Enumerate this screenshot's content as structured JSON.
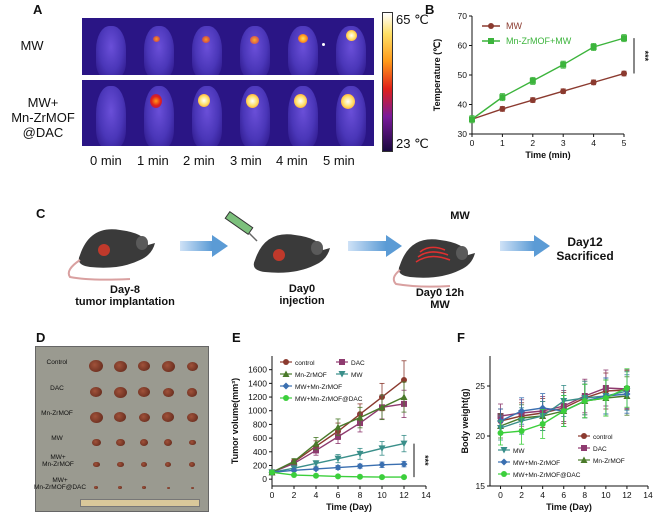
{
  "panels": {
    "A": "A",
    "B": "B",
    "C": "C",
    "D": "D",
    "E": "E",
    "F": "F"
  },
  "panelA": {
    "rows": [
      "MW",
      "MW+\nMn-ZrMOF\n@DAC"
    ],
    "row1": "MW",
    "row2a": "MW+",
    "row2b": "Mn-ZrMOF",
    "row2c": "@DAC",
    "times": [
      "0 min",
      "1 min",
      "2 min",
      "3 min",
      "4 min",
      "5 min"
    ],
    "scale_max": "65 ℃",
    "scale_min": "23 ℃"
  },
  "panelC": {
    "step1a": "Day-8",
    "step1b": "tumor implantation",
    "step2a": "Day0",
    "step2b": "injection",
    "step3_top": "MW",
    "step3a": "Day0 12h",
    "step3b": "MW",
    "step4a": "Day12",
    "step4b": "Sacrificed"
  },
  "panelD": {
    "labels": [
      "Control",
      "DAC",
      "Mn-ZrMOF",
      "MW",
      "MW+\nMn-ZrMOF",
      "MW+\nMn-ZrMOF@DAC"
    ]
  },
  "colors": {
    "mw": "#8b3a2f",
    "mof": "#3cb43c",
    "control": "#8b3a2f",
    "dac": "#8e3a6f",
    "mnzrmof": "#4a7a2a",
    "mwE": "#3a8f8a",
    "mwmof": "#3a6fb0",
    "mwmofdac": "#3ccf3c"
  },
  "chart_data": [
    {
      "id": "B",
      "type": "line",
      "xlabel": "Time (min)",
      "ylabel": "Temperature (℃)",
      "xlim": [
        0,
        5
      ],
      "ylim": [
        30,
        70
      ],
      "xticks": [
        0,
        1,
        2,
        3,
        4,
        5
      ],
      "yticks": [
        30,
        40,
        50,
        60,
        70
      ],
      "significance": "***",
      "legend_position": "top-left",
      "series": [
        {
          "name": "MW",
          "x": [
            0,
            1,
            2,
            3,
            4,
            5
          ],
          "y": [
            35,
            38.5,
            41.5,
            44.5,
            47.5,
            50.5
          ]
        },
        {
          "name": "Mn-ZrMOF+MW",
          "x": [
            0,
            1,
            2,
            3,
            4,
            5
          ],
          "y": [
            35,
            42.5,
            48,
            53.5,
            59.5,
            62.5
          ]
        }
      ]
    },
    {
      "id": "E",
      "type": "line",
      "xlabel": "Time (Day)",
      "ylabel": "Tumor volume(mm³)",
      "xlim": [
        0,
        14
      ],
      "ylim": [
        -100,
        1800
      ],
      "xticks": [
        0,
        2,
        4,
        6,
        8,
        10,
        12,
        14
      ],
      "yticks": [
        0,
        200,
        400,
        600,
        800,
        1000,
        1200,
        1400,
        1600
      ],
      "significance": "***",
      "legend_position": "top-left",
      "series": [
        {
          "name": "control",
          "x": [
            0,
            2,
            4,
            6,
            8,
            10,
            12
          ],
          "y": [
            100,
            250,
            480,
            700,
            950,
            1200,
            1450
          ]
        },
        {
          "name": "DAC",
          "x": [
            0,
            2,
            4,
            6,
            8,
            10,
            12
          ],
          "y": [
            100,
            230,
            420,
            620,
            820,
            1050,
            1100
          ]
        },
        {
          "name": "Mn-ZrMOF",
          "x": [
            0,
            2,
            4,
            6,
            8,
            10,
            12
          ],
          "y": [
            100,
            260,
            520,
            760,
            900,
            1050,
            1200
          ]
        },
        {
          "name": "MW",
          "x": [
            0,
            2,
            4,
            6,
            8,
            10,
            12
          ],
          "y": [
            100,
            160,
            230,
            300,
            370,
            450,
            520
          ]
        },
        {
          "name": "MW+Mn-ZrMOF",
          "x": [
            0,
            2,
            4,
            6,
            8,
            10,
            12
          ],
          "y": [
            100,
            130,
            150,
            170,
            190,
            210,
            220
          ]
        },
        {
          "name": "MW+Mn-ZrMOF@DAC",
          "x": [
            0,
            2,
            4,
            6,
            8,
            10,
            12
          ],
          "y": [
            100,
            60,
            50,
            40,
            35,
            30,
            30
          ]
        }
      ]
    },
    {
      "id": "F",
      "type": "line",
      "xlabel": "Time (Day)",
      "ylabel": "Body weight(g)",
      "xlim": [
        -1,
        14
      ],
      "ylim": [
        15,
        28
      ],
      "xticks": [
        0,
        2,
        4,
        6,
        8,
        10,
        12,
        14
      ],
      "yticks": [
        15,
        20,
        25
      ],
      "legend_position": "bottom-left",
      "series": [
        {
          "name": "control",
          "x": [
            0,
            2,
            4,
            6,
            8,
            10,
            12
          ],
          "y": [
            21.5,
            22.0,
            22.3,
            22.8,
            23.8,
            24.5,
            24.6
          ]
        },
        {
          "name": "DAC",
          "x": [
            0,
            2,
            4,
            6,
            8,
            10,
            12
          ],
          "y": [
            22.0,
            22.3,
            22.5,
            23.0,
            24.0,
            24.8,
            24.7
          ]
        },
        {
          "name": "Mn-ZrMOF",
          "x": [
            0,
            2,
            4,
            6,
            8,
            10,
            12
          ],
          "y": [
            21.0,
            21.8,
            22.0,
            22.5,
            23.5,
            23.8,
            24.0
          ]
        },
        {
          "name": "MW",
          "x": [
            0,
            2,
            4,
            6,
            8,
            10,
            12
          ],
          "y": [
            20.8,
            21.5,
            22.0,
            23.5,
            23.8,
            24.0,
            24.5
          ]
        },
        {
          "name": "MW+Mn-ZrMOF",
          "x": [
            0,
            2,
            4,
            6,
            8,
            10,
            12
          ],
          "y": [
            21.5,
            22.5,
            22.8,
            22.5,
            23.5,
            24.0,
            24.2
          ]
        },
        {
          "name": "MW+Mn-ZrMOF@DAC",
          "x": [
            0,
            2,
            4,
            6,
            8,
            10,
            12
          ],
          "y": [
            20.3,
            20.5,
            21.2,
            22.5,
            23.5,
            23.8,
            24.8
          ]
        }
      ]
    }
  ]
}
